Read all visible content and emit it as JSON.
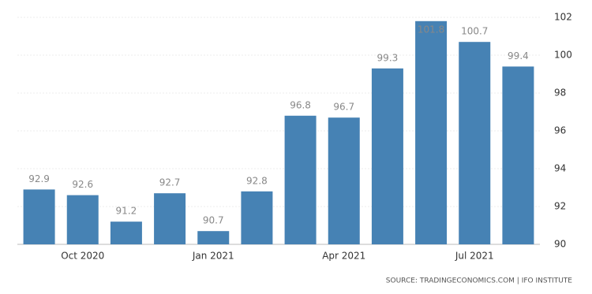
{
  "chart_data": {
    "type": "bar",
    "categories": [
      null,
      "Oct 2020",
      null,
      null,
      "Jan 2021",
      null,
      null,
      "Apr 2021",
      null,
      null,
      "Jul 2021",
      null
    ],
    "values": [
      92.9,
      92.6,
      91.2,
      92.7,
      90.7,
      92.8,
      96.8,
      96.7,
      99.3,
      101.8,
      100.7,
      99.4
    ],
    "color": "#4682b4",
    "ylim": [
      90,
      102
    ],
    "yticks": [
      90,
      92,
      94,
      96,
      98,
      100,
      102
    ],
    "grid": true,
    "source": "SOURCE: TRADINGECONOMICS.COM | IFO INSTITUTE"
  }
}
